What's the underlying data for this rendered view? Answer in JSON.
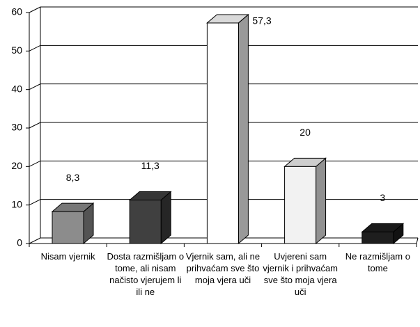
{
  "chart_data": {
    "type": "bar3d",
    "categories": [
      "Nisam vjernik",
      "Dosta razmišljam o tome, ali nisam načisto vjerujem li ili ne",
      "Vjernik sam, ali ne prihvaćam sve što moja vjera uči",
      "Uvjereni sam vjernik i prihvaćam sve što moja vjera uči",
      "Ne razmišljam o tome"
    ],
    "values": [
      8.3,
      11.3,
      57.3,
      20,
      3
    ],
    "value_labels": [
      "8,3",
      "11,3",
      "57,3",
      "20",
      "3"
    ],
    "colors": [
      "#8c8c8c",
      "#404040",
      "#ffffff",
      "#f2f2f2",
      "#1e1e1e"
    ],
    "ylim": [
      0,
      60
    ],
    "yticks": [
      0,
      10,
      20,
      30,
      40,
      50,
      60
    ],
    "grid": true
  }
}
